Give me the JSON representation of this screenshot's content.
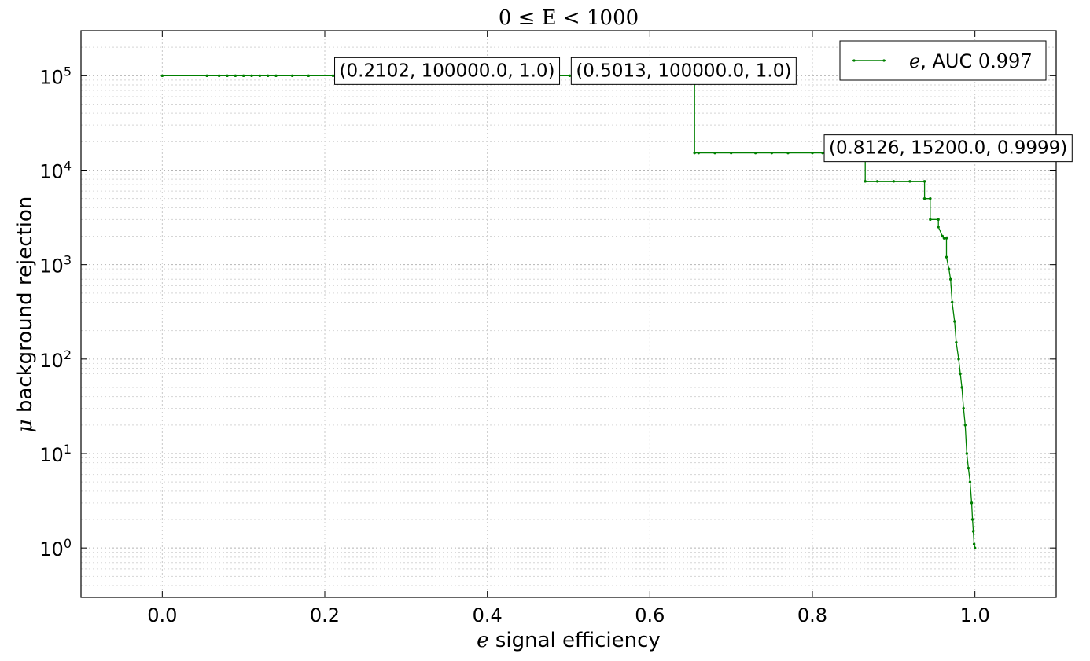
{
  "chart_data": {
    "type": "line",
    "title": "0 ≤ E < 1000",
    "xlabel": {
      "symbol": "e",
      "text": "signal efficiency"
    },
    "ylabel": {
      "symbol": "μ",
      "text": "background rejection"
    },
    "xlim": [
      -0.1,
      1.1
    ],
    "ylim": [
      0.3,
      300000
    ],
    "yscale": "log",
    "grid": true,
    "x_ticks": [
      "0.0",
      "0.2",
      "0.4",
      "0.6",
      "0.8",
      "1.0"
    ],
    "x_tick_values": [
      0.0,
      0.2,
      0.4,
      0.6,
      0.8,
      1.0
    ],
    "y_ticks": [
      {
        "value": 1,
        "base": "10",
        "exp": "0"
      },
      {
        "value": 10,
        "base": "10",
        "exp": "1"
      },
      {
        "value": 100,
        "base": "10",
        "exp": "2"
      },
      {
        "value": 1000,
        "base": "10",
        "exp": "3"
      },
      {
        "value": 10000,
        "base": "10",
        "exp": "4"
      },
      {
        "value": 100000,
        "base": "10",
        "exp": "5"
      }
    ],
    "legend": {
      "placement": "top-right"
    },
    "series": [
      {
        "name": "e",
        "auc_label": "AUC",
        "auc_value": "0.997",
        "color": "#008000",
        "x": [
          0.0,
          0.055,
          0.07,
          0.08,
          0.09,
          0.1,
          0.11,
          0.12,
          0.13,
          0.14,
          0.16,
          0.18,
          0.2102,
          0.3,
          0.4,
          0.5013,
          0.6,
          0.655,
          0.655,
          0.66,
          0.68,
          0.7,
          0.73,
          0.75,
          0.77,
          0.8,
          0.8126,
          0.84,
          0.865,
          0.865,
          0.88,
          0.9,
          0.92,
          0.938,
          0.938,
          0.945,
          0.945,
          0.955,
          0.955,
          0.96,
          0.962,
          0.965,
          0.965,
          0.968,
          0.97,
          0.972,
          0.975,
          0.977,
          0.98,
          0.982,
          0.984,
          0.986,
          0.988,
          0.99,
          0.992,
          0.994,
          0.996,
          0.997,
          0.998,
          0.999,
          1.0
        ],
        "y": [
          100000,
          100000,
          100000,
          100000,
          100000,
          100000,
          100000,
          100000,
          100000,
          100000,
          100000,
          100000,
          100000,
          100000,
          100000,
          100000,
          100000,
          100000,
          15200,
          15200,
          15200,
          15200,
          15200,
          15200,
          15200,
          15200,
          15200,
          15200,
          15200,
          7600,
          7600,
          7600,
          7600,
          7600,
          5000,
          5000,
          3000,
          3000,
          2500,
          2000,
          1900,
          1900,
          1200,
          900,
          700,
          400,
          250,
          150,
          100,
          70,
          50,
          30,
          20,
          10,
          7,
          5,
          3,
          2,
          1.5,
          1.1,
          1.0
        ]
      }
    ],
    "annotations": [
      {
        "x": 0.2102,
        "y": 100000,
        "text": "(0.2102, 100000.0, 1.0)"
      },
      {
        "x": 0.5013,
        "y": 100000,
        "text": "(0.5013, 100000.0, 1.0)"
      },
      {
        "x": 0.8126,
        "y": 15200,
        "text": "(0.8126, 15200.0, 0.9999)"
      }
    ]
  }
}
